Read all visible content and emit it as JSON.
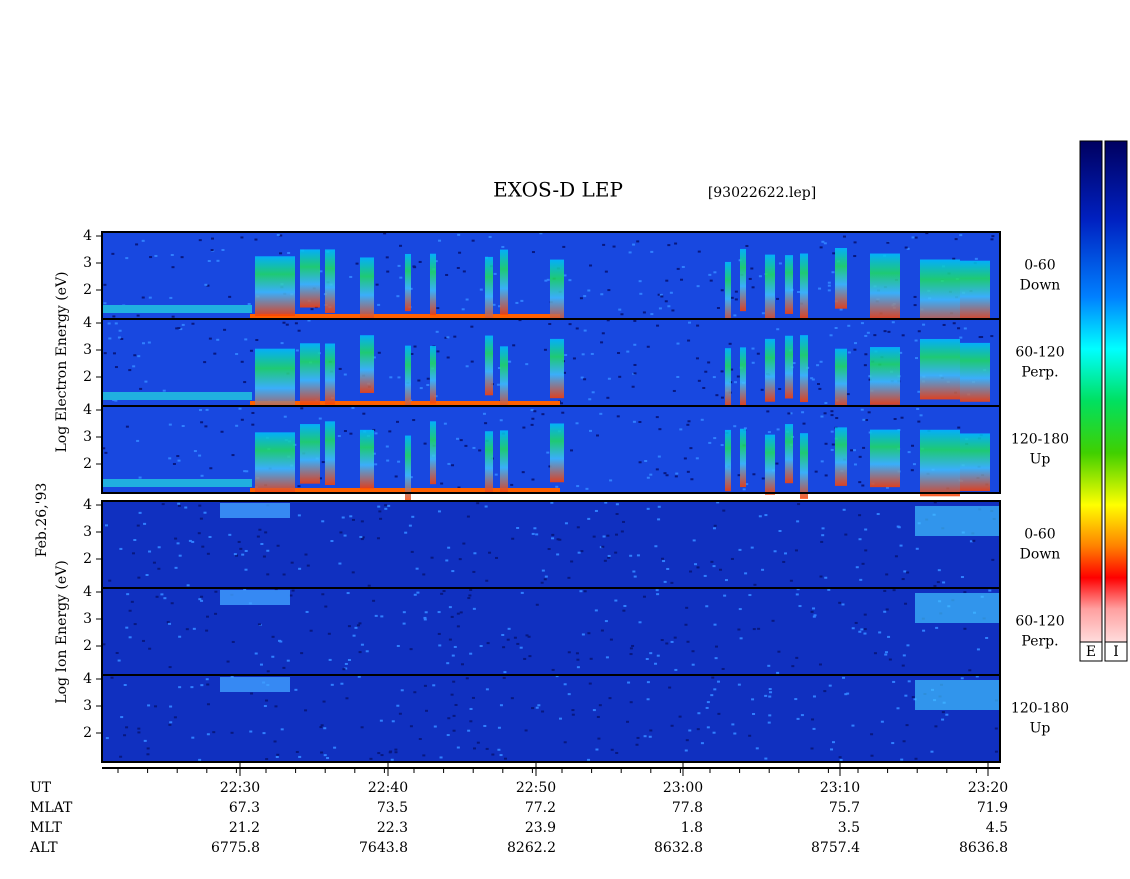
{
  "title": "EXOS-D LEP",
  "file": "[93022622.lep]",
  "date_label": "Feb.26,'93",
  "electron": {
    "axis_label": "Log  Electron  Energy (eV)",
    "panels": [
      {
        "angle": "0-60",
        "direction": "Down"
      },
      {
        "angle": "60-120",
        "direction": "Perp."
      },
      {
        "angle": "120-180",
        "direction": "Up"
      }
    ]
  },
  "ion": {
    "axis_label": "Log  Ion  Energy (eV)",
    "panels": [
      {
        "angle": "0-60",
        "direction": "Down"
      },
      {
        "angle": "60-120",
        "direction": "Perp."
      },
      {
        "angle": "120-180",
        "direction": "Up"
      }
    ]
  },
  "yticks": [
    2,
    3,
    4
  ],
  "rows": [
    {
      "name": "UT",
      "values": [
        "22:30",
        "22:40",
        "22:50",
        "23:00",
        "23:10",
        "23:20"
      ]
    },
    {
      "name": "MLAT",
      "values": [
        "67.3",
        "73.5",
        "77.2",
        "77.8",
        "75.7",
        "71.9"
      ]
    },
    {
      "name": "MLT",
      "values": [
        "21.2",
        "22.3",
        "23.9",
        "1.8",
        "3.5",
        "4.5"
      ]
    },
    {
      "name": "ALT",
      "values": [
        "6775.8",
        "7643.8",
        "8262.2",
        "8632.8",
        "8757.4",
        "8636.8"
      ]
    }
  ],
  "colorbars": [
    "E",
    "I"
  ]
}
